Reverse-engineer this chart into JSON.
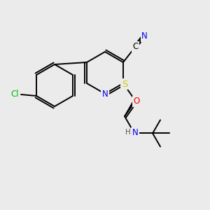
{
  "bg_color": "#ebebeb",
  "bond_color": "#000000",
  "atom_colors": {
    "N": "#0000ee",
    "S": "#cccc00",
    "O": "#ff0000",
    "Cl": "#00bb00",
    "C": "#000000",
    "H": "#555555"
  },
  "font_size_atom": 8.5,
  "figsize": [
    3.0,
    3.0
  ],
  "dpi": 100,
  "lw": 1.4
}
